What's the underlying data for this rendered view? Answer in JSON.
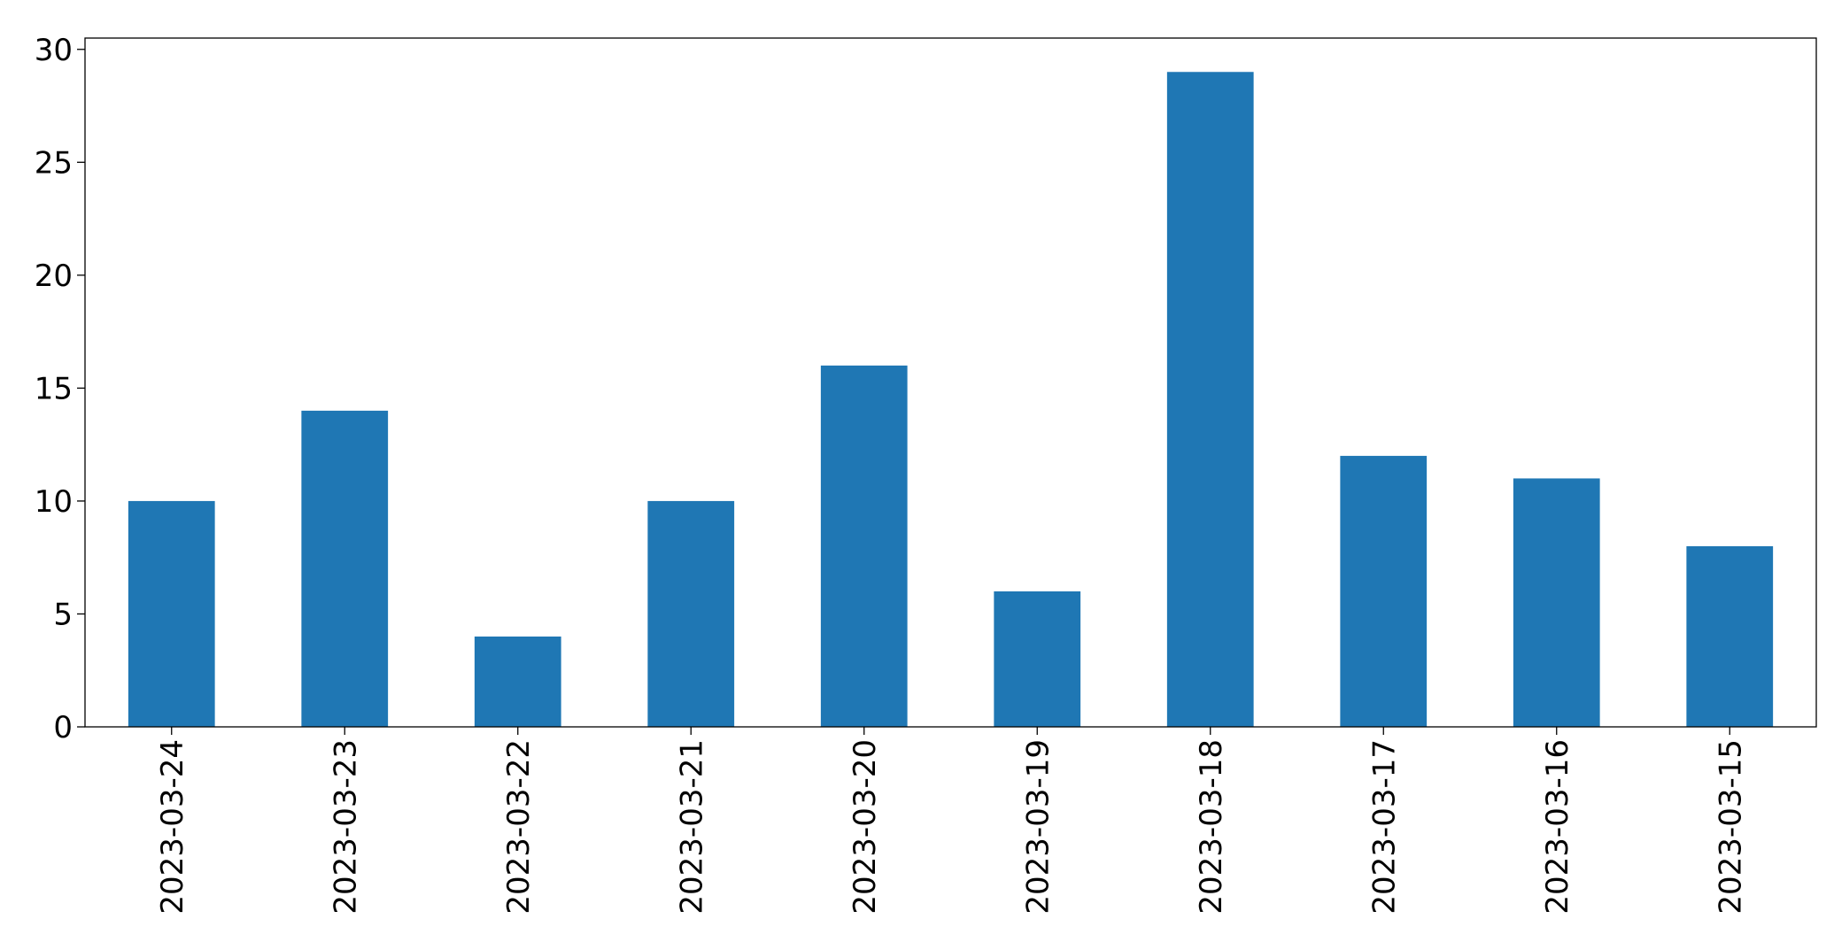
{
  "chart_data": {
    "type": "bar",
    "categories": [
      "2023-03-24",
      "2023-03-23",
      "2023-03-22",
      "2023-03-21",
      "2023-03-20",
      "2023-03-19",
      "2023-03-18",
      "2023-03-17",
      "2023-03-16",
      "2023-03-15"
    ],
    "values": [
      10,
      14,
      4,
      10,
      16,
      6,
      29,
      12,
      11,
      8
    ],
    "color": "#1f77b4",
    "ylim": [
      0,
      30.5
    ],
    "yticks": [
      0,
      5,
      10,
      15,
      20,
      25,
      30
    ],
    "grid": false
  }
}
